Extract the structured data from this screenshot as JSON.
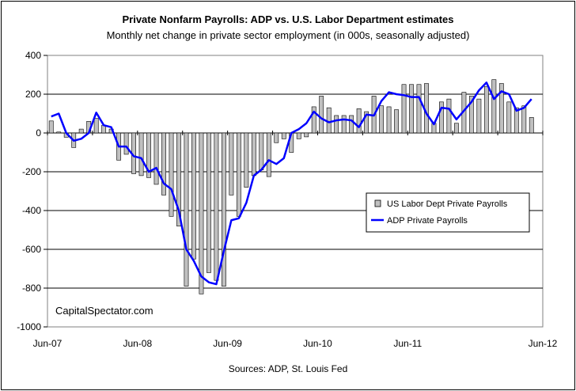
{
  "chart_data": {
    "type": "bar",
    "title": "Private Nonfarm Payrolls: ADP vs. U.S. Labor Department estimates",
    "subtitle": "Monthly net change in private sector employment (in 000s, seasonally adjusted)",
    "source": "Sources: ADP, St. Louis Fed",
    "watermark": "CapitalSpectator.com",
    "xlabel": "",
    "ylabel": "",
    "ylim": [
      -1000,
      400
    ],
    "yticks": [
      400,
      200,
      0,
      -200,
      -400,
      -600,
      -800,
      -1000
    ],
    "ytick_labels": [
      "400",
      "200",
      "0",
      "-200",
      "-400",
      "-600",
      "-800",
      "-1000"
    ],
    "xtick_labels": [
      "Jun-07",
      "Jun-08",
      "Jun-09",
      "Jun-10",
      "Jun-11",
      "Jun-12"
    ],
    "xtick_months": [
      0,
      12,
      24,
      36,
      48,
      60
    ],
    "grid": "horizontal",
    "legend_position": "middle-right",
    "colors": {
      "bars": "#c0c0c0",
      "bar_stroke": "#000000",
      "line": "#0000ff",
      "grid": "#000000",
      "plot_border": "#808080"
    },
    "series": [
      {
        "name": "US Labor Dept Private Payrolls",
        "kind": "bar",
        "start": "Jun-07",
        "values": [
          62,
          5,
          -22,
          -75,
          20,
          60,
          75,
          40,
          20,
          -140,
          -110,
          -210,
          -220,
          -230,
          -265,
          -320,
          -430,
          -480,
          -790,
          -650,
          -830,
          -720,
          -760,
          -790,
          -320,
          -430,
          -280,
          -220,
          -190,
          -225,
          -50,
          -30,
          -100,
          -30,
          -20,
          135,
          190,
          130,
          90,
          90,
          90,
          125,
          110,
          190,
          140,
          135,
          120,
          250,
          250,
          250,
          255,
          50,
          160,
          175,
          50,
          210,
          190,
          175,
          240,
          275,
          255,
          160,
          130,
          140,
          80
        ]
      },
      {
        "name": "ADP Private Payrolls",
        "kind": "line",
        "start": "Jun-07",
        "values": [
          85,
          100,
          0,
          -40,
          -30,
          0,
          105,
          40,
          30,
          -70,
          -70,
          -120,
          -130,
          -200,
          -180,
          -260,
          -290,
          -400,
          -600,
          -660,
          -740,
          -770,
          -780,
          -610,
          -450,
          -440,
          -360,
          -220,
          -190,
          -140,
          -160,
          -130,
          0,
          20,
          50,
          110,
          75,
          55,
          65,
          70,
          65,
          30,
          95,
          90,
          165,
          210,
          200,
          195,
          185,
          185,
          100,
          45,
          130,
          125,
          70,
          115,
          160,
          220,
          260,
          175,
          215,
          200,
          115,
          130,
          175
        ]
      }
    ]
  }
}
